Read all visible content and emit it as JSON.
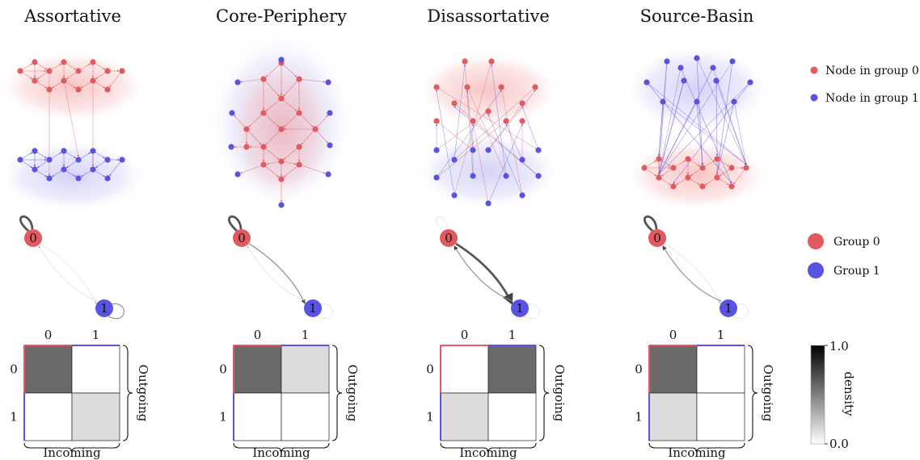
{
  "colors": {
    "group0": "#e05a5f",
    "group1": "#5a52e0",
    "dark": "#555555",
    "light": "#d3d3d3",
    "white": "#ffffff"
  },
  "legend": {
    "node0": "Node in group 0",
    "node1": "Node in group 1",
    "group0": "Group 0",
    "group1": "Group 1",
    "colorbar_label": "density",
    "colorbar_max": "1.0",
    "colorbar_min": "0.0"
  },
  "axis_labels": {
    "col0": "0",
    "col1": "1",
    "row0": "0",
    "row1": "1",
    "outgoing": "Outgoing",
    "incoming": "Incoming"
  },
  "group_labels": {
    "g0": "0",
    "g1": "1"
  },
  "panels": [
    {
      "title": "Assortative",
      "matrix": [
        [
          0.85,
          0.0
        ],
        [
          0.0,
          0.2
        ]
      ]
    },
    {
      "title": "Core-Periphery",
      "matrix": [
        [
          0.85,
          0.2
        ],
        [
          0.0,
          0.0
        ]
      ]
    },
    {
      "title": "Disassortative",
      "matrix": [
        [
          0.0,
          0.85
        ],
        [
          0.2,
          0.0
        ]
      ]
    },
    {
      "title": "Source-Basin",
      "matrix": [
        [
          0.85,
          0.0
        ],
        [
          0.2,
          0.0
        ]
      ]
    }
  ]
}
